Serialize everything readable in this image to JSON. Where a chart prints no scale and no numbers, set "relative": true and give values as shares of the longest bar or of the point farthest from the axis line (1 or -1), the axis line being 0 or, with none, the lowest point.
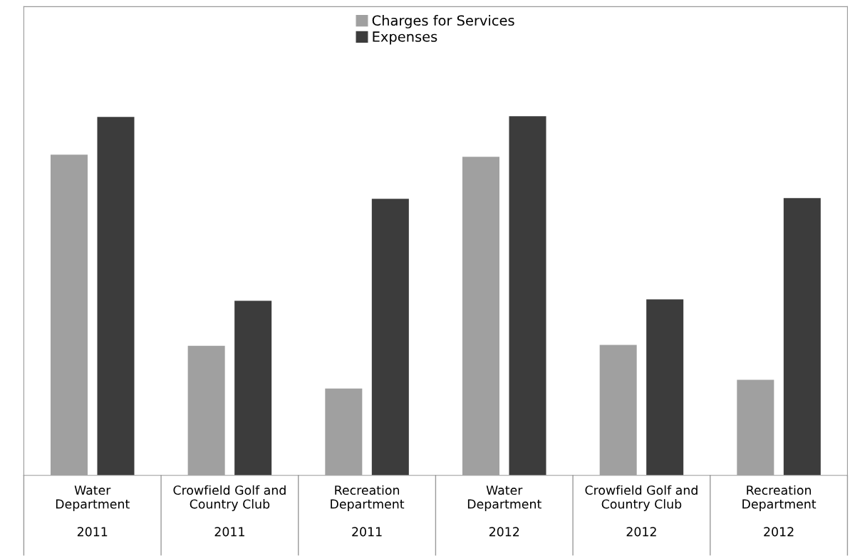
{
  "chart_data": {
    "type": "bar",
    "relative": true,
    "categories": [
      "Water\nDepartment\n\n2011",
      "Crowfield Golf and\nCountry Club\n\n2011",
      "Recreation\nDepartment\n\n2011",
      "Water\nDepartment\n\n2012",
      "Crowfield Golf and\nCountry Club\n\n2012",
      "Recreation\nDepartment\n\n2012"
    ],
    "series": [
      {
        "name": "Charges for Services",
        "color": "#a0a0a0",
        "values": [
          0.893,
          0.361,
          0.242,
          0.887,
          0.363,
          0.266
        ]
      },
      {
        "name": "Expenses",
        "color": "#3c3c3c",
        "values": [
          0.998,
          0.486,
          0.77,
          1.0,
          0.49,
          0.772
        ]
      }
    ],
    "legend": "top"
  }
}
